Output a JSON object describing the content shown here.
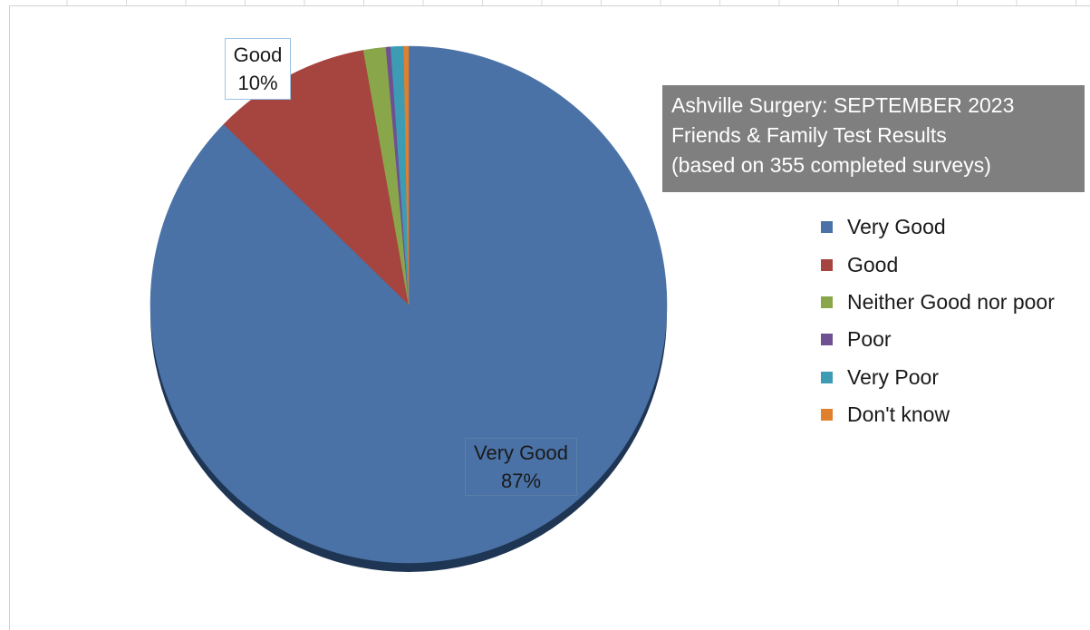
{
  "chart_data": {
    "type": "pie",
    "title": "Ashville Surgery: SEPTEMBER 2023",
    "subtitle_lines": [
      "Friends & Family Test Results",
      "(based on  355 completed surveys)"
    ],
    "categories": [
      "Very Good",
      "Good",
      "Neither Good nor poor",
      "Poor",
      "Very Poor",
      "Don't know"
    ],
    "values": [
      87.3,
      9.9,
      1.4,
      0.3,
      0.8,
      0.3
    ],
    "colors": [
      "#4a72a6",
      "#a6443f",
      "#8aa64a",
      "#6f5193",
      "#3d9cb3",
      "#e0802f"
    ],
    "data_labels": {
      "very_good": {
        "name": "Very Good",
        "pct": "87%"
      },
      "good": {
        "name": "Good",
        "pct": "10%"
      }
    },
    "legend_position": "right"
  }
}
